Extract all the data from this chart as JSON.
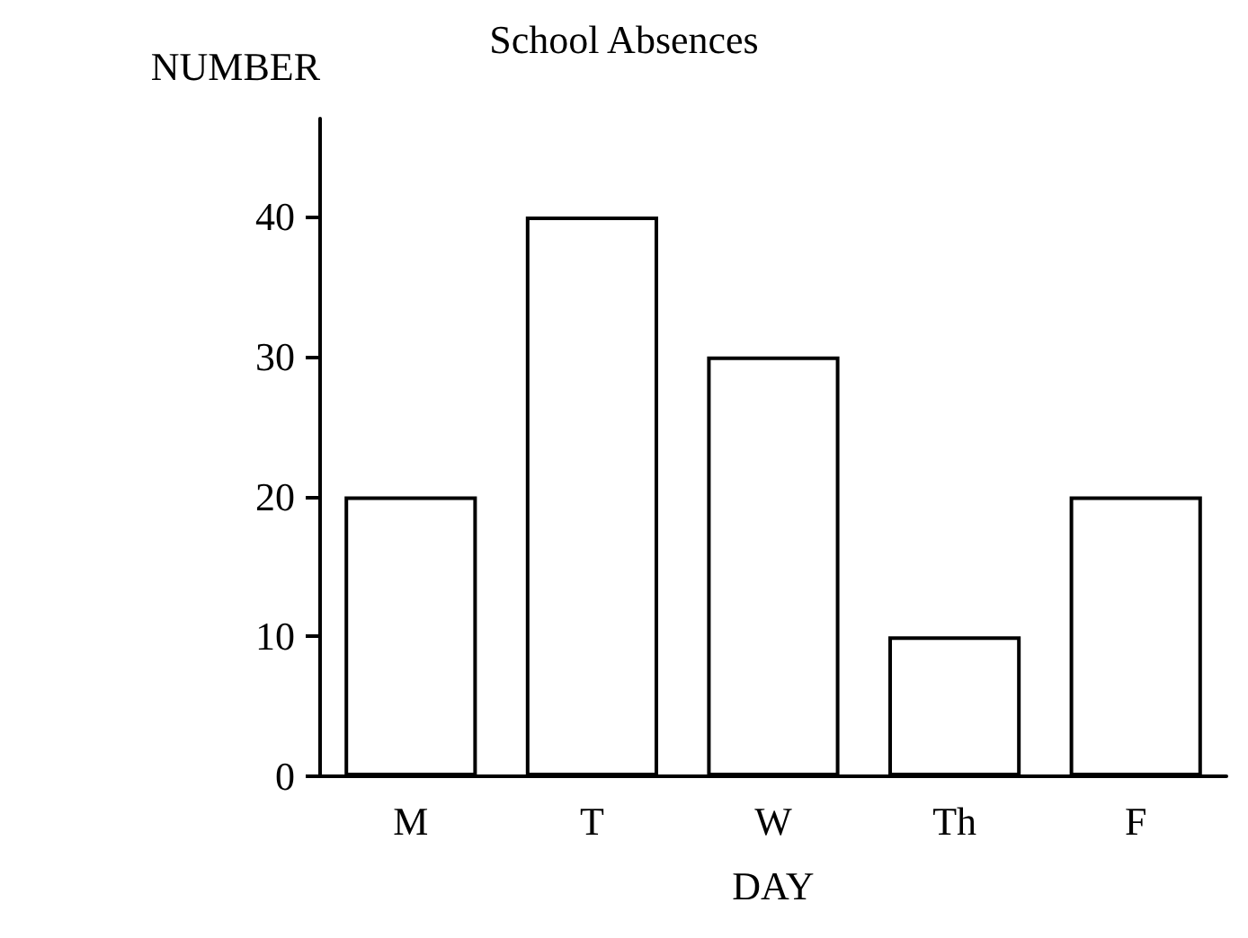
{
  "chart_data": {
    "type": "bar",
    "title": "School Absences",
    "xlabel": "DAY",
    "ylabel": "NUMBER",
    "categories": [
      "M",
      "T",
      "W",
      "Th",
      "F"
    ],
    "values": [
      20,
      40,
      30,
      10,
      20
    ],
    "color": "#ffffff",
    "ylim": [
      0,
      47
    ],
    "yticks": [
      0,
      10,
      20,
      30,
      40
    ],
    "grid": false
  }
}
